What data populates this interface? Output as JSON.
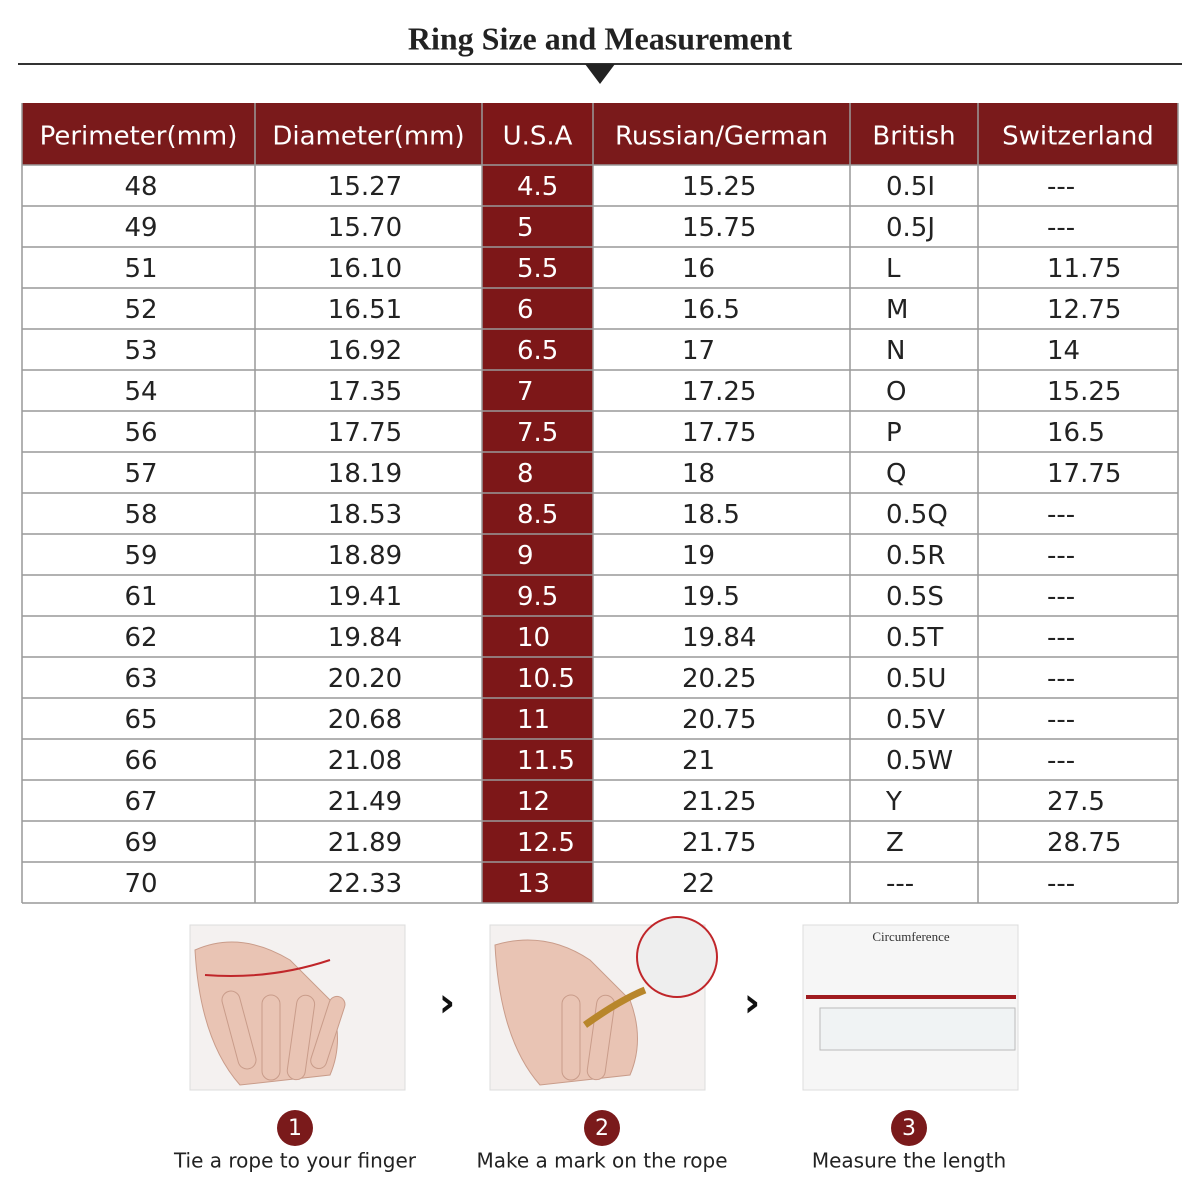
{
  "header": {
    "title": "Ring Size and Measurement"
  },
  "table": {
    "columns": [
      "Perimeter(mm)",
      "Diameter(mm)",
      "U.S.A",
      "Russian/German",
      "British",
      "Switzerland"
    ],
    "rows": [
      [
        "48",
        "15.27",
        "4.5",
        "15.25",
        "0.5I",
        "---"
      ],
      [
        "49",
        "15.70",
        "5",
        "15.75",
        "0.5J",
        "---"
      ],
      [
        "51",
        "16.10",
        "5.5",
        "16",
        "L",
        "11.75"
      ],
      [
        "52",
        "16.51",
        "6",
        "16.5",
        "M",
        "12.75"
      ],
      [
        "53",
        "16.92",
        "6.5",
        "17",
        "N",
        "14"
      ],
      [
        "54",
        "17.35",
        "7",
        "17.25",
        "O",
        "15.25"
      ],
      [
        "56",
        "17.75",
        "7.5",
        "17.75",
        "P",
        "16.5"
      ],
      [
        "57",
        "18.19",
        "8",
        "18",
        "Q",
        "17.75"
      ],
      [
        "58",
        "18.53",
        "8.5",
        "18.5",
        "0.5Q",
        "---"
      ],
      [
        "59",
        "18.89",
        "9",
        "19",
        "0.5R",
        "---"
      ],
      [
        "61",
        "19.41",
        "9.5",
        "19.5",
        "0.5S",
        "---"
      ],
      [
        "62",
        "19.84",
        "10",
        "19.84",
        "0.5T",
        "---"
      ],
      [
        "63",
        "20.20",
        "10.5",
        "20.25",
        "0.5U",
        "---"
      ],
      [
        "65",
        "20.68",
        "11",
        "20.75",
        "0.5V",
        "---"
      ],
      [
        "66",
        "21.08",
        "11.5",
        "21",
        "0.5W",
        "---"
      ],
      [
        "67",
        "21.49",
        "12",
        "21.25",
        "Y",
        "27.5"
      ],
      [
        "69",
        "21.89",
        "12.5",
        "21.75",
        "Z",
        "28.75"
      ],
      [
        "70",
        "22.33",
        "13",
        "22",
        "---",
        "---"
      ]
    ]
  },
  "steps": [
    {
      "number": "1",
      "caption": "Tie a rope to your finger"
    },
    {
      "number": "2",
      "caption": "Make a mark on the rope"
    },
    {
      "number": "3",
      "caption": "Measure the length",
      "label": "Circumference"
    }
  ]
}
